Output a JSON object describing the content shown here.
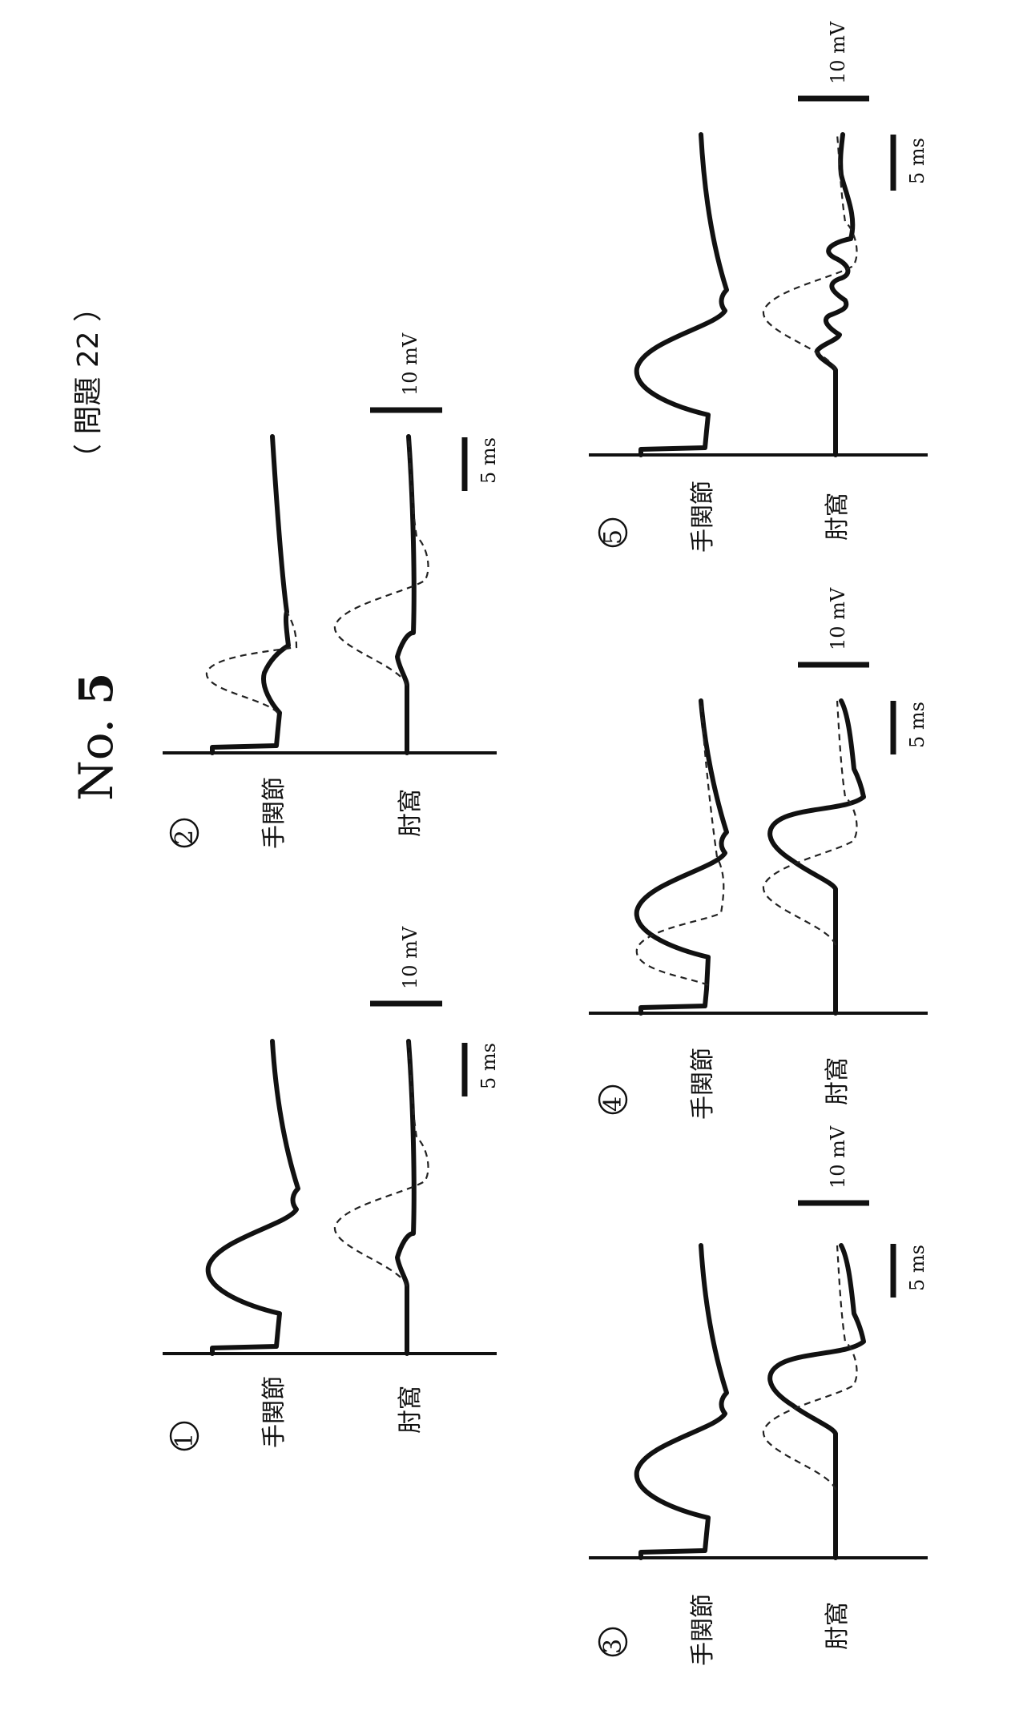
{
  "header": {
    "number_label": "No.",
    "number_value": "5",
    "question_ref": "（ 問題 22 ）"
  },
  "panels": [
    {
      "id": "1",
      "marker": "①",
      "label_top": "手関節",
      "label_bottom": "肘窩",
      "scale_amplitude": "10 mV",
      "scale_time": "5 ms"
    },
    {
      "id": "2",
      "marker": "②",
      "label_top": "手関節",
      "label_bottom": "肘窩",
      "scale_amplitude": "10 mV",
      "scale_time": "5 ms"
    },
    {
      "id": "3",
      "marker": "③",
      "label_top": "手関節",
      "label_bottom": "肘窩",
      "scale_amplitude": "10 mV",
      "scale_time": "5 ms"
    },
    {
      "id": "4",
      "marker": "④",
      "label_top": "手関節",
      "label_bottom": "肘窩",
      "scale_amplitude": "10 mV",
      "scale_time": "5 ms"
    },
    {
      "id": "5",
      "marker": "⑤",
      "label_top": "手関節",
      "label_bottom": "肘窩",
      "scale_amplitude": "10 mV",
      "scale_time": "5 ms"
    }
  ]
}
